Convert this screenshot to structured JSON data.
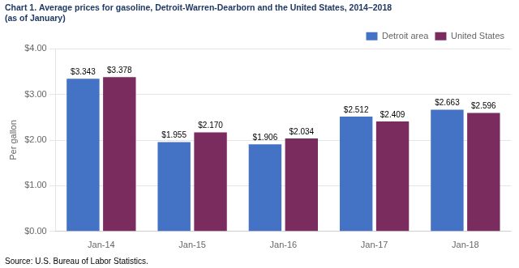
{
  "chart_data": {
    "type": "bar",
    "title": "Chart 1. Average prices for gasoline, Detroit-Warren-Dearborn and the United States, 2014–2018",
    "subtitle": "(as of January)",
    "ylabel": "Per gallon",
    "annotations": [
      "Source: U.S. Bureau of Labor Statistics."
    ],
    "categories": [
      "Jan-14",
      "Jan-15",
      "Jan-16",
      "Jan-17",
      "Jan-18"
    ],
    "series": [
      {
        "name": "Detroit area",
        "color": "#4472C4",
        "values": [
          3.343,
          1.955,
          1.906,
          2.512,
          2.663
        ],
        "value_labels": [
          "$3.343",
          "$1.955",
          "$1.906",
          "$2.512",
          "$2.663"
        ]
      },
      {
        "name": "United States",
        "color": "#7B2C5E",
        "values": [
          3.378,
          2.17,
          2.034,
          2.409,
          2.596
        ],
        "value_labels": [
          "$3.378",
          "$2.170",
          "$2.034",
          "$2.409",
          "$2.596"
        ]
      }
    ],
    "ylim": [
      0,
      4.0
    ],
    "yticks": [
      {
        "value": 0,
        "label": "$0.00"
      },
      {
        "value": 1,
        "label": "$1.00"
      },
      {
        "value": 2,
        "label": "$2.00"
      },
      {
        "value": 3,
        "label": "$3.00"
      },
      {
        "value": 4,
        "label": "$4.00"
      }
    ],
    "grid": true,
    "legend": "top-right",
    "data_labels": true
  }
}
